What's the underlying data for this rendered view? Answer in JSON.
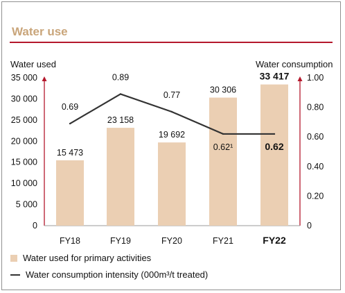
{
  "title": "Water use",
  "left_axis_label": "Water used",
  "right_axis_label": "Water consumption",
  "legend": {
    "bars": "Water used for primary activities",
    "line": "Water consumption intensity (000m³/t treated)"
  },
  "colors": {
    "bar": "#ebcfb3",
    "line": "#333333",
    "axis": "#b4182c",
    "title": "#c9a57a"
  },
  "chart_data": {
    "type": "bar",
    "categories": [
      "FY18",
      "FY19",
      "FY20",
      "FY21",
      "FY22"
    ],
    "highlight_category": "FY22",
    "series": [
      {
        "name": "Water used for primary activities",
        "type": "bar",
        "axis": "left",
        "values": [
          15473,
          23158,
          19692,
          30306,
          33417
        ],
        "labels": [
          "15 473",
          "23 158",
          "19 692",
          "30 306",
          "33 417"
        ]
      },
      {
        "name": "Water consumption intensity (000m³/t treated)",
        "type": "line",
        "axis": "right",
        "values": [
          0.69,
          0.89,
          0.77,
          0.62,
          0.62
        ],
        "labels": [
          "0.69",
          "0.89",
          "0.77",
          "0.62¹",
          "0.62"
        ]
      }
    ],
    "left_axis": {
      "label": "Water used",
      "range": [
        0,
        35000
      ],
      "ticks": [
        "0",
        "5 000",
        "10 000",
        "15 000",
        "20 000",
        "25 000",
        "30 000",
        "35 000"
      ]
    },
    "right_axis": {
      "label": "Water consumption",
      "range": [
        0,
        1.0
      ],
      "ticks": [
        "0",
        "0.20",
        "0.40",
        "0.60",
        "0.80",
        "1.00"
      ]
    },
    "legend_position": "bottom-left",
    "grid": false
  }
}
